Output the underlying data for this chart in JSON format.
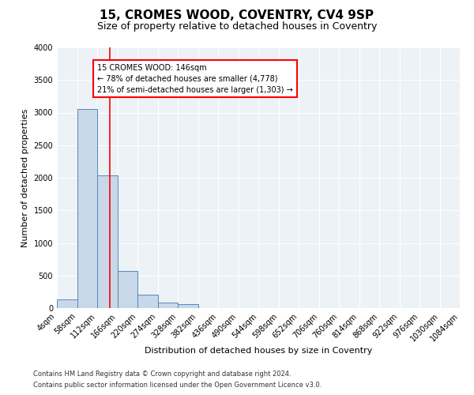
{
  "title": "15, CROMES WOOD, COVENTRY, CV4 9SP",
  "subtitle": "Size of property relative to detached houses in Coventry",
  "xlabel": "Distribution of detached houses by size in Coventry",
  "ylabel": "Number of detached properties",
  "bin_edges": [
    4,
    58,
    112,
    166,
    220,
    274,
    328,
    382,
    436,
    490,
    544,
    598,
    652,
    706,
    760,
    814,
    868,
    922,
    976,
    1030,
    1084
  ],
  "bar_heights": [
    130,
    3060,
    2040,
    570,
    210,
    80,
    55,
    0,
    0,
    0,
    0,
    0,
    0,
    0,
    0,
    0,
    0,
    0,
    0,
    0
  ],
  "bar_color": "#c8d8e8",
  "bar_edge_color": "#5588bb",
  "property_size": 146,
  "property_label": "15 CROMES WOOD: 146sqm",
  "pct_smaller": 78,
  "n_smaller": 4778,
  "pct_larger_semi": 21,
  "n_larger_semi": 1303,
  "vline_color": "red",
  "annotation_box_color": "red",
  "ylim": [
    0,
    4000
  ],
  "yticks": [
    0,
    500,
    1000,
    1500,
    2000,
    2500,
    3000,
    3500,
    4000
  ],
  "footer_line1": "Contains HM Land Registry data © Crown copyright and database right 2024.",
  "footer_line2": "Contains public sector information licensed under the Open Government Licence v3.0.",
  "bg_color": "#edf2f7",
  "grid_color": "#ffffff",
  "title_fontsize": 11,
  "subtitle_fontsize": 9,
  "axis_label_fontsize": 8,
  "tick_fontsize": 7,
  "footer_fontsize": 6,
  "annot_fontsize": 7
}
